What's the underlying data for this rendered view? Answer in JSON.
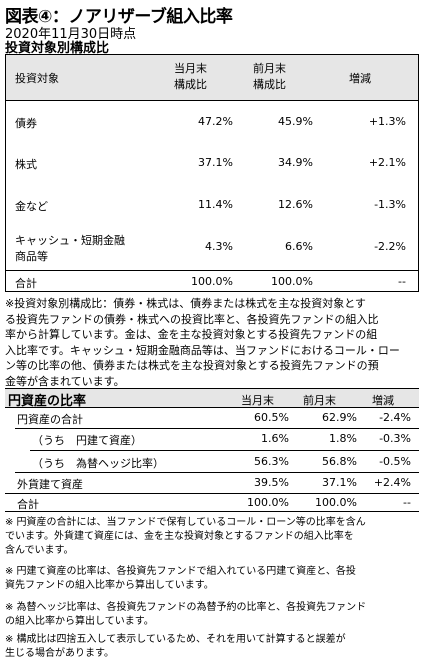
{
  "title": "図表④：ノアリザーブ組入比率",
  "date": "2020年11月30日時点",
  "subtitle": "投資対象別構成比",
  "table1": {
    "headers": {
      "asset": "投資対象",
      "cur_l1": "当月末",
      "cur_l2": "構成比",
      "prev_l1": "前月末",
      "prev_l2": "構成比",
      "change": "増減"
    },
    "rows": [
      {
        "name": "債券",
        "cur": "47.2%",
        "prev": "45.9%",
        "chg": "+1.3%"
      },
      {
        "name": "株式",
        "cur": "37.1%",
        "prev": "34.9%",
        "chg": "+2.1%"
      },
      {
        "name": "金など",
        "cur": "11.4%",
        "prev": "12.6%",
        "chg": "-1.3%"
      },
      {
        "name_l1": "キャッシュ・短期金融",
        "name_l2": "商品等",
        "cur": "4.3%",
        "prev": "6.6%",
        "chg": "-2.2%"
      }
    ],
    "total": {
      "name": "合計",
      "cur": "100.0%",
      "prev": "100.0%",
      "chg": "--"
    }
  },
  "note1": [
    "※投資対象別構成比：債券・株式は、債券または株式を主な投資対象とす",
    "る投資先ファンドの債券・株式への投資比率と、各投資先ファンドの組入比",
    "率から計算しています。金は、金を主な投資対象とする投資先ファンドの組",
    "入比率です。キャッシュ・短期金融商品等は、当ファンドにおけるコール・ロー",
    "ン等の比率の他、債券または株式を主な投資対象とする投資先ファンドの預",
    "金等が含まれています。"
  ],
  "table2": {
    "headers": {
      "label": "円資産の比率",
      "cur": "当月末",
      "prev": "前月末",
      "change": "増減"
    },
    "rows": [
      {
        "name": "円資産の合計",
        "cur": "60.5%",
        "prev": "62.9%",
        "chg": "-2.4%"
      },
      {
        "name": "（うち　円建て資産）",
        "cur": "1.6%",
        "prev": "1.8%",
        "chg": "-0.3%"
      },
      {
        "name": "（うち　為替ヘッジ比率）",
        "cur": "56.3%",
        "prev": "56.8%",
        "chg": "-0.5%"
      },
      {
        "name": "外貨建て資産",
        "cur": "39.5%",
        "prev": "37.1%",
        "chg": "+2.4%"
      },
      {
        "name": "合計",
        "cur": "100.0%",
        "prev": "100.0%",
        "chg": "--"
      }
    ]
  },
  "notes2": [
    [
      "※ 円資産の合計には、当ファンドで保有しているコール・ローン等の比率を含ん",
      "でいます。外貨建て資産には、金を主な投資対象とするファンドの組入比率を",
      "含んでいます。"
    ],
    [
      "※ 円建て資産の比率は、各投資先ファンドで組入れている円建て資産と、各投",
      "資先ファンドの組入比率から算出しています。"
    ],
    [
      "※ 為替ヘッジ比率は、各投資先ファンドの為替予約の比率と、各投資先ファンド",
      "の組入比率から算出しています。"
    ],
    [
      "※ 構成比は四捨五入して表示しているため、それを用いて計算すると誤差が",
      "生じる場合があります。"
    ]
  ]
}
